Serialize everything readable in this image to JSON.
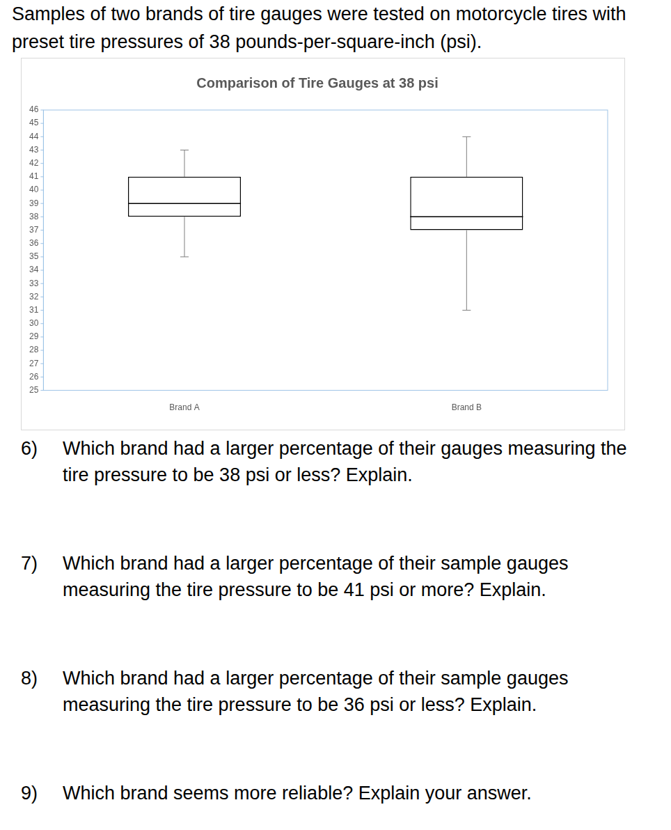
{
  "header": "Samples of two brands of tire gauges were tested on motorcycle tires with preset tire pressures of 38 pounds-per-square-inch (psi).",
  "chart_data": {
    "type": "box",
    "title": "Comparison of Tire Gauges at 38 psi",
    "categories": [
      "Brand A",
      "Brand B"
    ],
    "min": [
      35,
      31
    ],
    "q1": [
      38,
      37
    ],
    "median": [
      39,
      38
    ],
    "q3": [
      41,
      41
    ],
    "max": [
      43,
      44
    ],
    "color": "#000000",
    "ylim": [
      25,
      46
    ],
    "yticks": [
      25,
      26,
      27,
      28,
      29,
      30,
      31,
      32,
      33,
      34,
      35,
      36,
      37,
      38,
      39,
      40,
      41,
      42,
      43,
      44,
      45,
      46
    ],
    "grid": false
  },
  "questions": [
    {
      "number": "6)",
      "text": "Which brand had a larger percentage of their gauges measuring the tire pressure to be 38 psi or less? Explain."
    },
    {
      "number": "7)",
      "text": "Which brand had a larger percentage of their sample gauges measuring the tire pressure to be 41 psi or more? Explain."
    },
    {
      "number": "8)",
      "text": "Which brand had a larger percentage of their sample gauges measuring the tire pressure to be 36 psi or less? Explain."
    },
    {
      "number": "9)",
      "text": "Which brand seems more reliable? Explain your answer."
    }
  ]
}
